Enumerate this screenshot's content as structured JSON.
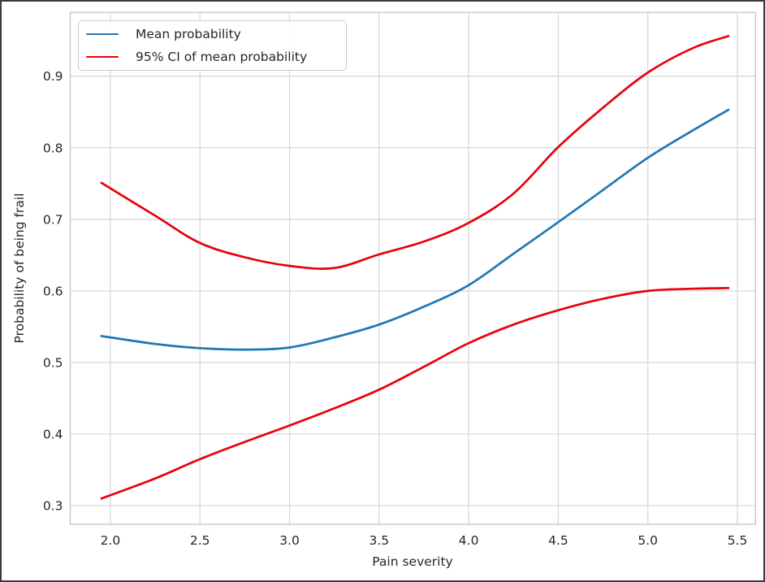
{
  "colors": {
    "mean_line": "#1f77b4",
    "ci_line": "#e8000b",
    "grid": "#d9d9d9",
    "spine": "#c9c9c9",
    "text": "#262626",
    "frame": "#3b3b3b",
    "background": "#ffffff"
  },
  "chart_data": {
    "type": "line",
    "title": "",
    "xlabel": "Pain severity",
    "ylabel": "Probability of being frail",
    "grid": true,
    "legend_position": "upper left",
    "xlim": [
      1.776,
      5.601
    ],
    "ylim": [
      0.274,
      0.989
    ],
    "x_ticks": [
      2.0,
      2.5,
      3.0,
      3.5,
      4.0,
      4.5,
      5.0,
      5.5
    ],
    "x_tick_labels": [
      "2.0",
      "2.5",
      "3.0",
      "3.5",
      "4.0",
      "4.5",
      "5.0",
      "5.5"
    ],
    "y_ticks": [
      0.3,
      0.4,
      0.5,
      0.6,
      0.7,
      0.8,
      0.9
    ],
    "y_tick_labels": [
      "0.3",
      "0.4",
      "0.5",
      "0.6",
      "0.7",
      "0.8",
      "0.9"
    ],
    "legend": {
      "entries": [
        {
          "label": "Mean probability",
          "color": "#1f77b4"
        },
        {
          "label": "95% CI of mean probability",
          "color": "#e8000b"
        }
      ]
    },
    "x": [
      1.95,
      2.25,
      2.5,
      2.75,
      3.0,
      3.25,
      3.5,
      3.75,
      4.0,
      4.25,
      4.5,
      4.75,
      5.0,
      5.25,
      5.45
    ],
    "series": [
      {
        "name": "Mean probability",
        "color": "#1f77b4",
        "values": [
          0.537,
          0.526,
          0.52,
          0.518,
          0.521,
          0.535,
          0.553,
          0.578,
          0.608,
          0.652,
          0.696,
          0.741,
          0.786,
          0.824,
          0.853
        ]
      },
      {
        "name": "95% CI upper bound",
        "color": "#e8000b",
        "values": [
          0.751,
          0.705,
          0.667,
          0.647,
          0.635,
          0.632,
          0.651,
          0.669,
          0.695,
          0.736,
          0.801,
          0.856,
          0.905,
          0.939,
          0.956
        ]
      },
      {
        "name": "95% CI lower bound",
        "color": "#e8000b",
        "values": [
          0.31,
          0.338,
          0.365,
          0.389,
          0.412,
          0.436,
          0.462,
          0.494,
          0.527,
          0.553,
          0.573,
          0.589,
          0.6,
          0.603,
          0.604
        ]
      }
    ]
  }
}
